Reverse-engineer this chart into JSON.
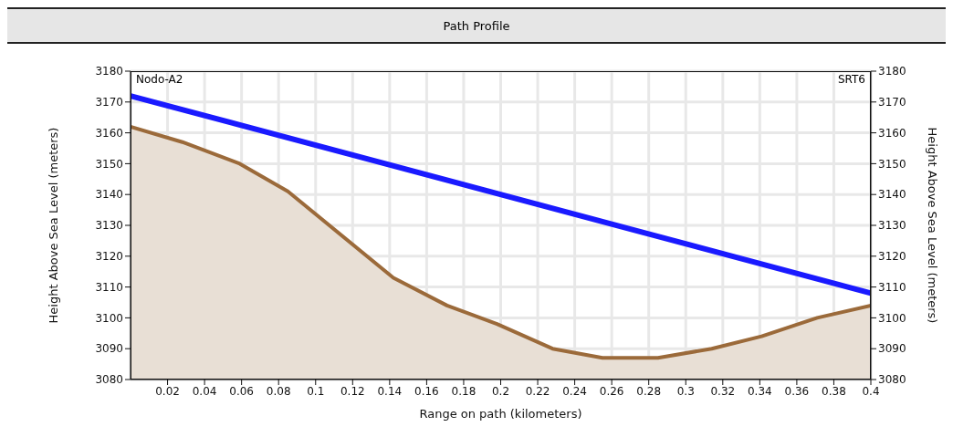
{
  "chart_data": {
    "type": "area",
    "title": "Path Profile",
    "xlabel": "Range on path (kilometers)",
    "ylabel": "Height Above Sea Level (meters)",
    "y2label": "Height Above Sea Level (meters)",
    "annotations": [
      "Nodo-A2",
      "SRT6"
    ],
    "series": [
      {
        "color": "#9b6a3a",
        "x": [
          0,
          0.028,
          0.059,
          0.085,
          0.142,
          0.171,
          0.198,
          0.228,
          0.255,
          0.285,
          0.314,
          0.341,
          0.371,
          0.4
        ],
        "values": [
          3162,
          3157,
          3150,
          3141,
          3113,
          3104,
          3098,
          3090,
          3087,
          3087,
          3090,
          3094,
          3100,
          3104
        ]
      },
      {
        "type": "line",
        "color": "#1a1aff",
        "x": [
          0,
          0.4
        ],
        "values": [
          3172,
          3108
        ]
      }
    ],
    "xlim": [
      0,
      0.4
    ],
    "xticks": [
      0.02,
      0.04,
      0.06,
      0.08,
      0.1,
      0.12,
      0.14,
      0.16,
      0.18,
      0.2,
      0.22,
      0.24,
      0.26,
      0.28,
      0.3,
      0.32,
      0.34,
      0.36,
      0.38,
      0.4
    ],
    "ylim": [
      3080,
      3180
    ],
    "yticks": [
      3080,
      3090,
      3100,
      3110,
      3120,
      3130,
      3140,
      3150,
      3160,
      3170,
      3180
    ],
    "y2lim": [
      3080,
      3180
    ],
    "y2ticks": [
      3080,
      3090,
      3100,
      3110,
      3120,
      3130,
      3140,
      3150,
      3160,
      3170,
      3180
    ],
    "grid": true,
    "legend": false
  }
}
